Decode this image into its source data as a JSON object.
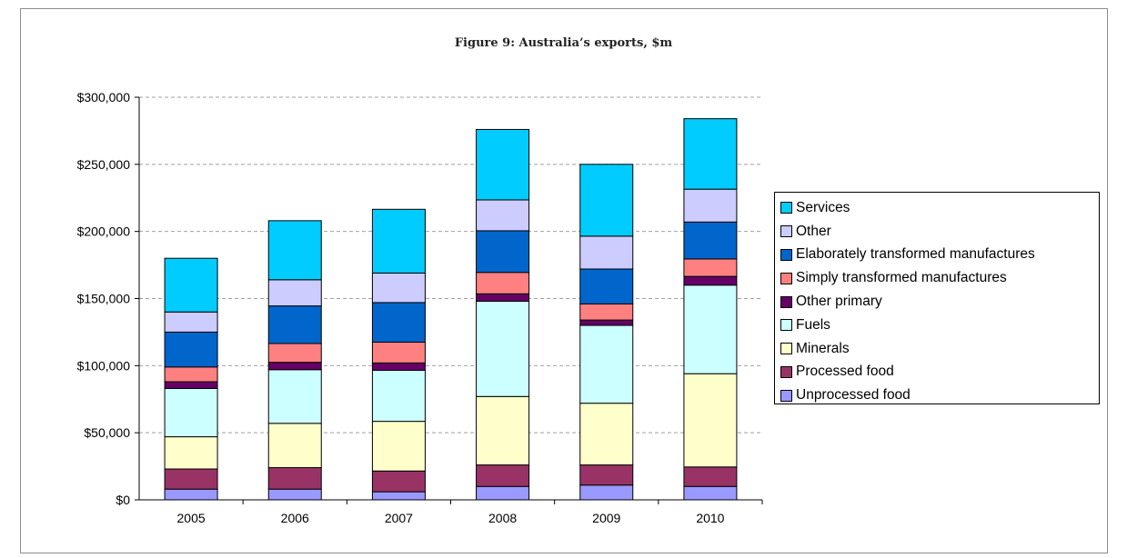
{
  "chart_data": {
    "type": "bar",
    "stacked": true,
    "title": "Figure 9: Australia’s exports, $m",
    "xlabel": "",
    "ylabel": "",
    "ylim": [
      0,
      300000
    ],
    "y_ticks": [
      "$0",
      "$50,000",
      "$100,000",
      "$150,000",
      "$200,000",
      "$250,000",
      "$300,000"
    ],
    "y_tick_values": [
      0,
      50000,
      100000,
      150000,
      200000,
      250000,
      300000
    ],
    "grid": true,
    "legend_position": "right",
    "categories": [
      "2005",
      "2006",
      "2007",
      "2008",
      "2009",
      "2010"
    ],
    "series": [
      {
        "name": "Unprocessed food",
        "color": "#9999ff",
        "values": [
          8000,
          8000,
          6000,
          10000,
          11000,
          10000
        ]
      },
      {
        "name": "Processed food",
        "color": "#993366",
        "values": [
          15000,
          16000,
          15500,
          16000,
          15000,
          14500
        ]
      },
      {
        "name": "Minerals",
        "color": "#ffffcc",
        "values": [
          24000,
          33000,
          37000,
          51000,
          46000,
          69500
        ]
      },
      {
        "name": "Fuels",
        "color": "#ccffff",
        "values": [
          36000,
          40000,
          38000,
          71000,
          58000,
          66000
        ]
      },
      {
        "name": "Other primary",
        "color": "#660066",
        "values": [
          5000,
          5500,
          5500,
          5500,
          4000,
          6500
        ]
      },
      {
        "name": "Simply transformed manufactures",
        "color": "#ff8080",
        "values": [
          11000,
          14000,
          15500,
          16000,
          12000,
          13000
        ]
      },
      {
        "name": "Elaborately transformed manufactures",
        "color": "#0066cc",
        "values": [
          26000,
          28000,
          29500,
          31000,
          26000,
          27500
        ]
      },
      {
        "name": "Other",
        "color": "#ccccff",
        "values": [
          15000,
          19500,
          22000,
          23000,
          24500,
          24500
        ]
      },
      {
        "name": "Services",
        "color": "#00ccff",
        "values": [
          40000,
          44000,
          47500,
          52500,
          53500,
          52500
        ]
      }
    ]
  }
}
